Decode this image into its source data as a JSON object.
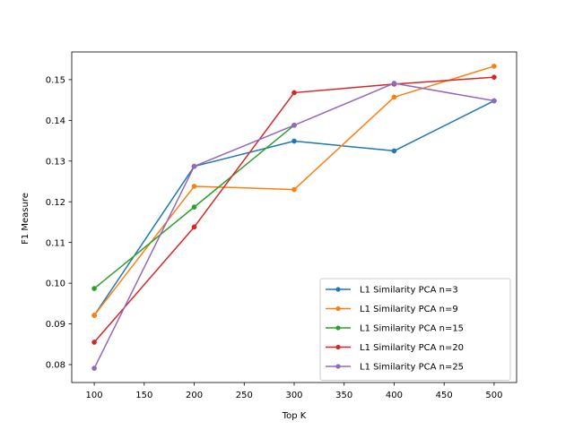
{
  "chart_data": {
    "type": "line",
    "title": "",
    "xlabel": "Top K",
    "ylabel": "F1 Measure",
    "x": [
      100,
      200,
      300,
      400,
      500
    ],
    "xlim": [
      77.5,
      522.5
    ],
    "ylim": [
      0.0756,
      0.1568
    ],
    "xticks": [
      "100",
      "150",
      "200",
      "250",
      "300",
      "350",
      "400",
      "450",
      "500"
    ],
    "yticks": [
      "0.08",
      "0.09",
      "0.10",
      "0.11",
      "0.12",
      "0.13",
      "0.14",
      "0.15"
    ],
    "grid": false,
    "legend_position": "lower right",
    "series": [
      {
        "name": "L1 Similarity PCA n=3",
        "color": "#1f77b4",
        "values": [
          0.0921,
          0.1287,
          0.1349,
          0.1325,
          0.1448
        ]
      },
      {
        "name": "L1 Similarity PCA n=9",
        "color": "#ff7f0e",
        "values": [
          0.0921,
          0.1238,
          0.123,
          0.1457,
          0.1533
        ]
      },
      {
        "name": "L1 Similarity PCA n=15",
        "color": "#2ca02c",
        "values": [
          0.0987,
          0.1187,
          0.1388,
          null,
          null
        ]
      },
      {
        "name": "L1 Similarity PCA n=20",
        "color": "#d62728",
        "values": [
          0.0855,
          0.1138,
          0.1468,
          0.1489,
          0.1506
        ]
      },
      {
        "name": "L1 Similarity PCA n=25",
        "color": "#9467bd",
        "values": [
          0.0791,
          0.1287,
          0.1388,
          0.1491,
          0.1448
        ]
      }
    ]
  }
}
